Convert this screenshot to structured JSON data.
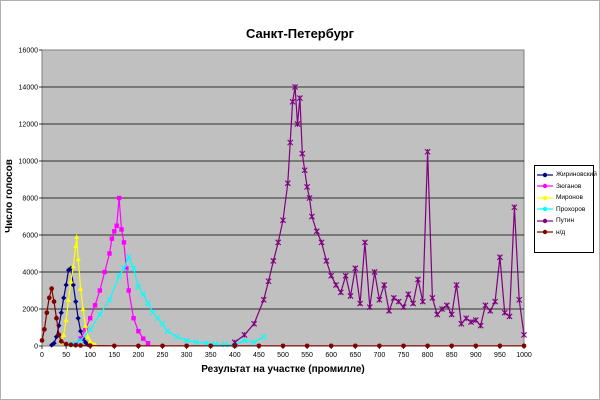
{
  "chart_data": {
    "type": "line",
    "title": "Санкт-Петербург",
    "xlabel": "Результат на участке (промилле)",
    "ylabel": "Число голосов",
    "xlim": [
      0,
      1000
    ],
    "ylim": [
      0,
      16000
    ],
    "x_ticks": [
      "0",
      "50",
      "100",
      "150",
      "200",
      "250",
      "300",
      "350",
      "400",
      "450",
      "500",
      "550",
      "600",
      "650",
      "700",
      "750",
      "800",
      "850",
      "900",
      "950",
      "1000"
    ],
    "y_ticks": [
      "0",
      "2000",
      "4000",
      "6000",
      "8000",
      "10000",
      "12000",
      "14000",
      "16000"
    ],
    "grid": true,
    "legend_position": "right",
    "plot_background": "#c0c0c0",
    "series": [
      {
        "name": "Жириновский",
        "color": "#000080",
        "marker": "diamond",
        "x": [
          20,
          25,
          30,
          35,
          40,
          45,
          50,
          55,
          60,
          65,
          70,
          75,
          80,
          85,
          90,
          95,
          100
        ],
        "y": [
          50,
          150,
          500,
          1100,
          1800,
          2600,
          3300,
          4100,
          4200,
          3300,
          2400,
          1500,
          800,
          400,
          200,
          80,
          30
        ]
      },
      {
        "name": "Зюганов",
        "color": "#ff00ff",
        "marker": "square",
        "x": [
          70,
          80,
          90,
          100,
          110,
          120,
          130,
          140,
          145,
          150,
          155,
          160,
          165,
          170,
          175,
          180,
          190,
          200,
          210,
          220
        ],
        "y": [
          100,
          400,
          900,
          1500,
          2200,
          3000,
          4000,
          5000,
          5800,
          6200,
          6500,
          8000,
          6300,
          5600,
          4200,
          3000,
          1500,
          800,
          400,
          150
        ]
      },
      {
        "name": "Миронов",
        "color": "#ffff00",
        "marker": "triangle",
        "x": [
          40,
          45,
          50,
          55,
          60,
          65,
          70,
          72,
          75,
          80,
          85,
          90,
          95,
          100,
          110
        ],
        "y": [
          200,
          600,
          1400,
          2500,
          3500,
          4300,
          5400,
          5900,
          4700,
          3100,
          2000,
          1100,
          500,
          250,
          80
        ]
      },
      {
        "name": "Прохоров",
        "color": "#00ffff",
        "marker": "x",
        "x": [
          60,
          80,
          100,
          120,
          140,
          160,
          170,
          180,
          190,
          200,
          210,
          220,
          230,
          240,
          250,
          260,
          280,
          300,
          320,
          340,
          360,
          380,
          400,
          420,
          440,
          460
        ],
        "y": [
          100,
          300,
          900,
          1700,
          2500,
          3800,
          4200,
          4800,
          4200,
          3200,
          2800,
          2300,
          1800,
          1500,
          1200,
          800,
          500,
          300,
          200,
          150,
          100,
          80,
          60,
          300,
          200,
          500
        ]
      },
      {
        "name": "Путин",
        "color": "#800080",
        "marker": "asterisk",
        "x": [
          400,
          420,
          440,
          460,
          470,
          480,
          490,
          500,
          510,
          515,
          520,
          525,
          530,
          535,
          540,
          545,
          550,
          555,
          560,
          570,
          580,
          590,
          600,
          610,
          620,
          630,
          640,
          650,
          660,
          670,
          680,
          690,
          700,
          710,
          720,
          730,
          740,
          750,
          760,
          770,
          780,
          790,
          800,
          810,
          820,
          830,
          840,
          850,
          860,
          870,
          880,
          890,
          900,
          910,
          920,
          930,
          940,
          950,
          960,
          970,
          980,
          990,
          1000
        ],
        "y": [
          200,
          600,
          1200,
          2500,
          3500,
          4600,
          5600,
          6800,
          8800,
          11000,
          13200,
          14000,
          12000,
          13400,
          10400,
          9500,
          8600,
          8000,
          7000,
          6200,
          5600,
          4600,
          3800,
          3300,
          2900,
          3800,
          2700,
          4200,
          2300,
          5600,
          2100,
          4000,
          2500,
          3300,
          1900,
          2600,
          2400,
          2100,
          2800,
          2300,
          3600,
          2400,
          10500,
          2600,
          1700,
          2000,
          2200,
          1700,
          3300,
          1200,
          1500,
          1300,
          1400,
          1100,
          2200,
          1900,
          2400,
          4800,
          1800,
          1600,
          7500,
          2500,
          600
        ]
      },
      {
        "name": "н/д",
        "color": "#800000",
        "marker": "circle",
        "x": [
          0,
          5,
          10,
          15,
          20,
          25,
          30,
          35,
          40,
          50,
          60,
          70,
          80,
          100,
          150,
          200,
          250,
          300,
          350,
          400,
          450,
          500,
          550,
          600,
          650,
          700,
          750,
          800,
          850,
          900,
          950,
          1000
        ],
        "y": [
          300,
          900,
          1800,
          2600,
          3100,
          2400,
          1500,
          600,
          250,
          100,
          60,
          40,
          30,
          20,
          10,
          10,
          10,
          10,
          10,
          10,
          10,
          10,
          10,
          10,
          10,
          10,
          10,
          10,
          10,
          10,
          10,
          10
        ]
      }
    ]
  }
}
